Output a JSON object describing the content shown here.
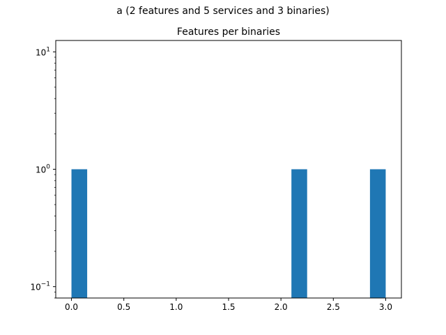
{
  "figure": {
    "suptitle": "a (2 features and 5 services and 3 binaries)"
  },
  "chart_data": {
    "type": "bar",
    "title": "Features per binaries",
    "xlabel": "",
    "ylabel": "",
    "yscale": "log",
    "xlim": [
      -0.15,
      3.15
    ],
    "ylim": [
      0.08,
      12.5
    ],
    "bar_width": 0.15,
    "bars": [
      {
        "x_start": 0.0,
        "x_end": 0.15,
        "value": 1
      },
      {
        "x_start": 2.1,
        "x_end": 2.25,
        "value": 1
      },
      {
        "x_start": 2.85,
        "x_end": 3.0,
        "value": 1
      }
    ],
    "x_ticks": [
      {
        "value": 0.0,
        "label": "0.0"
      },
      {
        "value": 0.5,
        "label": "0.5"
      },
      {
        "value": 1.0,
        "label": "1.0"
      },
      {
        "value": 1.5,
        "label": "1.5"
      },
      {
        "value": 2.0,
        "label": "2.0"
      },
      {
        "value": 2.5,
        "label": "2.5"
      },
      {
        "value": 3.0,
        "label": "3.0"
      }
    ],
    "y_ticks": [
      {
        "value": 0.1,
        "base": "10",
        "exp": "−1"
      },
      {
        "value": 1,
        "base": "10",
        "exp": "0"
      },
      {
        "value": 10,
        "base": "10",
        "exp": "1"
      }
    ],
    "bar_color": "#1f77b4",
    "grid": false,
    "legend": "none"
  }
}
